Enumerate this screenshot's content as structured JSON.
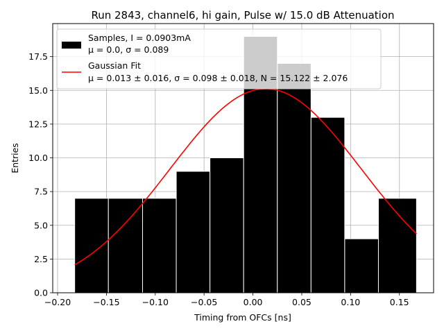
{
  "chart_data": {
    "type": "bar",
    "title": "Run 2843, channel6, hi gain, Pulse w/ 15.0 dB Attenuation",
    "xlabel": "Timing from OFCs [ns]",
    "ylabel": "Entries",
    "xlim": [
      -0.205,
      0.185
    ],
    "ylim": [
      0,
      19.95
    ],
    "xticks": [
      -0.2,
      -0.15,
      -0.1,
      -0.05,
      0.0,
      0.05,
      0.1,
      0.15
    ],
    "xtick_labels": [
      "−0.20",
      "−0.15",
      "−0.10",
      "−0.05",
      "0.00",
      "0.05",
      "0.10",
      "0.15"
    ],
    "yticks": [
      0,
      2.5,
      5,
      7.5,
      10,
      12.5,
      15,
      17.5
    ],
    "ytick_labels": [
      "0.0",
      "2.5",
      "5.0",
      "7.5",
      "10.0",
      "12.5",
      "15.0",
      "17.5"
    ],
    "grid": true,
    "legend_position": "top-left",
    "bins": {
      "edges": [
        -0.1825,
        -0.148,
        -0.113,
        -0.0785,
        -0.044,
        -0.0095,
        0.025,
        0.0595,
        0.094,
        0.1285,
        0.1675
      ],
      "counts": [
        7,
        7,
        7,
        9,
        10,
        19,
        17,
        13,
        4,
        7
      ],
      "color": "#000000",
      "name": "Samples, I = 0.0903mA",
      "name_line2": "μ = 0.0, σ = 0.089"
    },
    "fit": {
      "name": "Gaussian Fit",
      "name_line2": "μ = 0.013 ± 0.016, σ = 0.098 ± 0.018, N = 15.122 ± 2.076",
      "mu": 0.013,
      "sigma": 0.098,
      "N": 15.122,
      "x_range": [
        -0.1825,
        0.1675
      ],
      "color": "#ff0000"
    }
  }
}
